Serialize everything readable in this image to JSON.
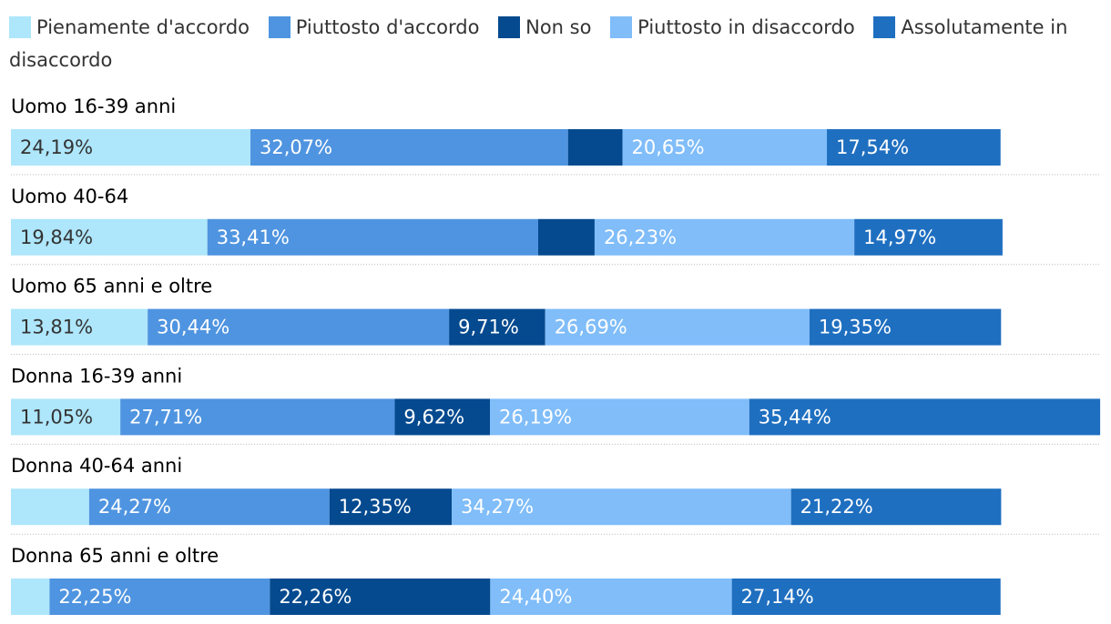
{
  "chart_data": {
    "type": "stacked-bar-horizontal",
    "categories": [
      "Uomo 16-39 anni",
      "Uomo 40-64",
      "Uomo 65 anni e oltre",
      "Donna 16-39 anni",
      "Donna 40-64 anni",
      "Donna 65 anni e oltre"
    ],
    "series": [
      {
        "name": "Pienamente d'accordo",
        "color": "#aee6fb",
        "values": [
          24.19,
          19.84,
          13.81,
          11.05,
          7.9,
          3.9
        ],
        "value_labels": [
          "24,19%",
          "19,84%",
          "13,81%",
          "11,05%",
          null,
          null
        ]
      },
      {
        "name": "Piuttosto d'accordo",
        "color": "#4f94e0",
        "values": [
          32.07,
          33.41,
          30.44,
          27.71,
          24.27,
          22.25
        ],
        "value_labels": [
          "32,07%",
          "33,41%",
          "30,44%",
          "27,71%",
          "24,27%",
          "22,25%"
        ]
      },
      {
        "name": "Non so",
        "color": "#054a8f",
        "values": [
          5.5,
          5.7,
          9.71,
          9.62,
          12.35,
          22.26
        ],
        "value_labels": [
          null,
          null,
          "9,71%",
          "9,62%",
          "12,35%",
          "22,26%"
        ]
      },
      {
        "name": "Piuttosto in disaccordo",
        "color": "#80bdf9",
        "values": [
          20.65,
          26.23,
          26.69,
          26.19,
          34.27,
          24.4
        ],
        "value_labels": [
          "20,65%",
          "26,23%",
          "26,69%",
          "26,19%",
          "34,27%",
          "24,40%"
        ]
      },
      {
        "name": "Assolutamente in disaccordo",
        "color": "#1f6fc0",
        "values": [
          17.54,
          14.97,
          19.35,
          35.44,
          21.22,
          27.14
        ],
        "value_labels": [
          "17,54%",
          "14,97%",
          "19,35%",
          "35,44%",
          "21,22%",
          "27,14%"
        ]
      }
    ],
    "xlim": [
      0,
      110
    ]
  }
}
